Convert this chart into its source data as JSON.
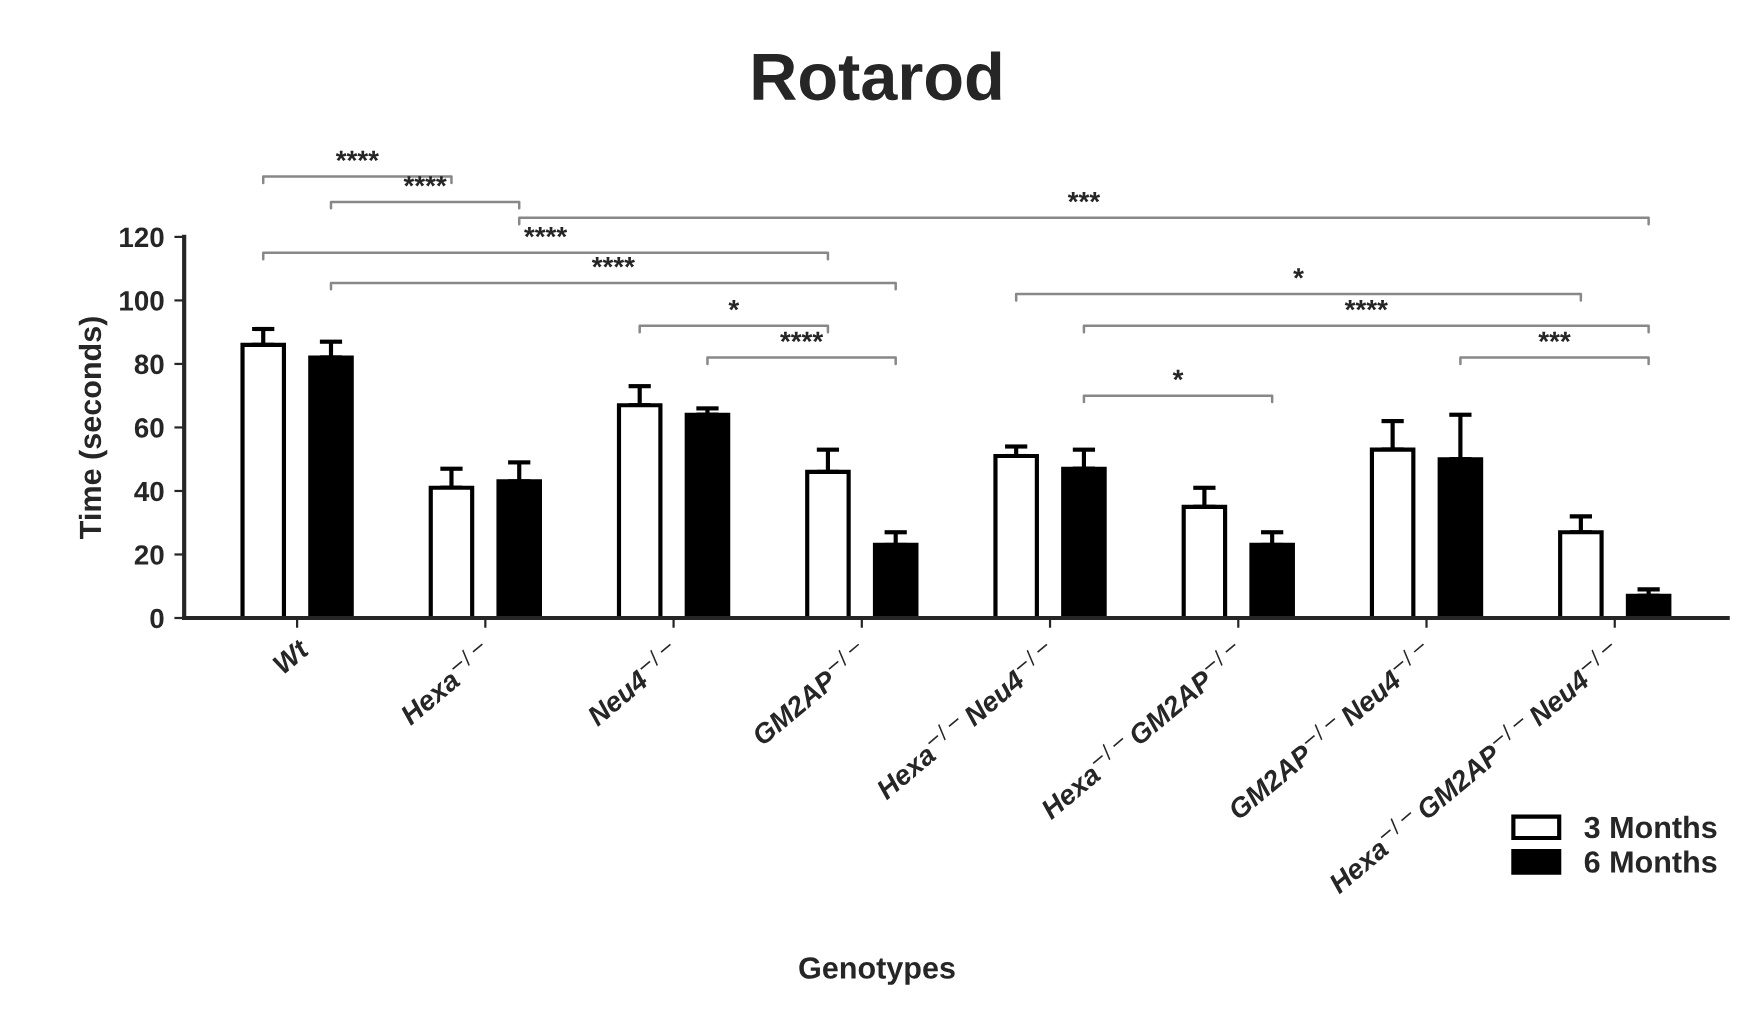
{
  "chart_data": {
    "type": "bar",
    "title": "Rotarod",
    "xlabel": "Genotypes",
    "ylabel": "Time (seconds)",
    "categories": [
      "Wt",
      "Hexa$^{−/−}$",
      "Neu4$^{−/−}$",
      "GM2AP$^{−/−}$",
      "Hexa$^{−/−}$Neu4$^{−/−}$",
      "Hexa$^{−/−}$GM2AP$^{−/−}$",
      "GM2AP$^{−/−}$Neu4$^{−/−}$",
      "Hexa$^{−/−}$GM2AP$^{−/−}$Neu4$^{−/−}$"
    ],
    "series": [
      {
        "name": "3 Months",
        "color": "#ffffff",
        "values": [
          86,
          41,
          67,
          46,
          51,
          35,
          53,
          27
        ],
        "errors": [
          [
            86,
            91
          ],
          [
            41,
            47
          ],
          [
            67,
            73
          ],
          [
            46,
            53
          ],
          [
            51,
            54
          ],
          [
            35,
            41
          ],
          [
            53,
            62
          ],
          [
            27,
            32
          ]
        ]
      },
      {
        "name": "6 Months",
        "color": "#000000",
        "values": [
          82,
          43,
          64,
          23,
          47,
          23,
          50,
          7
        ],
        "errors": [
          [
            82,
            87
          ],
          [
            43,
            49
          ],
          [
            64,
            66
          ],
          [
            23,
            27
          ],
          [
            47,
            53
          ],
          [
            23,
            27
          ],
          [
            50,
            64
          ],
          [
            7,
            9
          ]
        ]
      }
    ],
    "ylim": [
      0,
      120
    ],
    "yticks": [
      0,
      20,
      40,
      60,
      80,
      100,
      120
    ],
    "grid": false,
    "legend": "bottom right",
    "annotations": [
      "****",
      "****",
      "***",
      "****",
      "****",
      "*",
      "****",
      "*",
      "****",
      "***",
      "*"
    ]
  }
}
